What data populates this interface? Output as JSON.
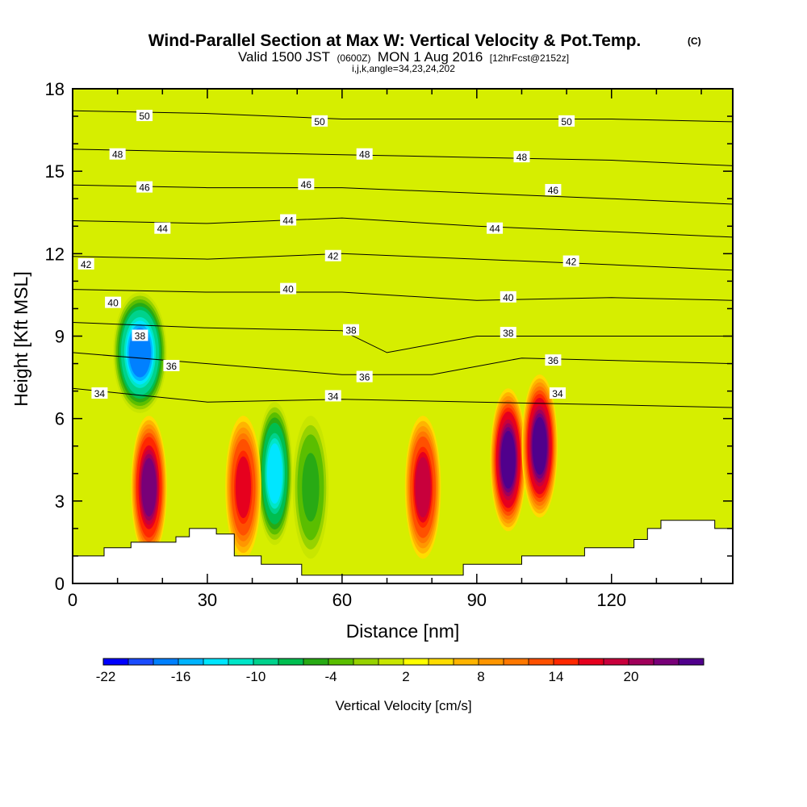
{
  "title": {
    "main": "Wind-Parallel Section at Max W: Vertical Velocity & Pot.Temp.",
    "copyright": "(C)",
    "valid_prefix": "Valid 1500 JST",
    "valid_z": "(0600Z)",
    "valid_date": "MON 1 Aug 2016",
    "valid_fcst": "[12hrFcst@2152z]",
    "indices": "i,j,k,angle=34,23,24,202"
  },
  "chart_data": {
    "type": "heatmap",
    "xlabel": "Distance [nm]",
    "ylabel": "Height [Kft MSL]",
    "xlim": [
      0,
      147
    ],
    "ylim": [
      0,
      18
    ],
    "x_ticks": [
      0,
      30,
      60,
      90,
      120
    ],
    "y_ticks": [
      0,
      3,
      6,
      9,
      12,
      15,
      18
    ],
    "colorbar": {
      "title": "Vertical Velocity [cm/s]",
      "tick_labels": [
        "-22",
        "-16",
        "-10",
        "-4",
        "2",
        "8",
        "14",
        "20"
      ],
      "colors": [
        "#0000ff",
        "#1a4cff",
        "#0080ff",
        "#00b4ff",
        "#00e6ff",
        "#00e6c8",
        "#00d28c",
        "#00be50",
        "#28aa14",
        "#5abe00",
        "#96d200",
        "#c8e600",
        "#ffff00",
        "#ffdc00",
        "#ffb400",
        "#ff9600",
        "#ff7800",
        "#ff5000",
        "#ff2800",
        "#e6001e",
        "#c8003c",
        "#a0005a",
        "#780078",
        "#50008c"
      ]
    },
    "w_centers": [
      {
        "x": 15,
        "y": 8.4,
        "w": -22
      },
      {
        "x": 45,
        "y": 4.0,
        "w": -18
      },
      {
        "x": 53,
        "y": 3.5,
        "w": -10
      },
      {
        "x": 17,
        "y": 3.5,
        "w": 22
      },
      {
        "x": 38,
        "y": 3.5,
        "w": 16
      },
      {
        "x": 78,
        "y": 3.5,
        "w": 18
      },
      {
        "x": 97,
        "y": 4.5,
        "w": 24
      },
      {
        "x": 104,
        "y": 5.0,
        "w": 24
      }
    ],
    "theta_contours": [
      {
        "label": "50",
        "points": [
          [
            0,
            17.2
          ],
          [
            30,
            17.1
          ],
          [
            60,
            16.9
          ],
          [
            90,
            16.9
          ],
          [
            120,
            16.9
          ],
          [
            147,
            16.8
          ]
        ],
        "labels_at": [
          [
            16,
            17.0
          ],
          [
            55,
            16.8
          ],
          [
            110,
            16.8
          ]
        ]
      },
      {
        "label": "48",
        "points": [
          [
            0,
            15.8
          ],
          [
            30,
            15.7
          ],
          [
            60,
            15.6
          ],
          [
            90,
            15.5
          ],
          [
            120,
            15.4
          ],
          [
            147,
            15.2
          ]
        ],
        "labels_at": [
          [
            10,
            15.6
          ],
          [
            65,
            15.6
          ],
          [
            100,
            15.5
          ]
        ]
      },
      {
        "label": "46",
        "points": [
          [
            0,
            14.5
          ],
          [
            30,
            14.4
          ],
          [
            60,
            14.4
          ],
          [
            90,
            14.2
          ],
          [
            120,
            14.0
          ],
          [
            147,
            13.8
          ]
        ],
        "labels_at": [
          [
            16,
            14.4
          ],
          [
            52,
            14.5
          ],
          [
            107,
            14.3
          ]
        ]
      },
      {
        "label": "44",
        "points": [
          [
            0,
            13.2
          ],
          [
            30,
            13.1
          ],
          [
            60,
            13.3
          ],
          [
            90,
            13.0
          ],
          [
            120,
            12.8
          ],
          [
            147,
            12.6
          ]
        ],
        "labels_at": [
          [
            20,
            12.9
          ],
          [
            48,
            13.2
          ],
          [
            94,
            12.9
          ]
        ]
      },
      {
        "label": "42",
        "points": [
          [
            0,
            11.9
          ],
          [
            30,
            11.8
          ],
          [
            60,
            12.0
          ],
          [
            90,
            11.8
          ],
          [
            120,
            11.6
          ],
          [
            147,
            11.4
          ]
        ],
        "labels_at": [
          [
            3,
            11.6
          ],
          [
            58,
            11.9
          ],
          [
            111,
            11.7
          ]
        ]
      },
      {
        "label": "40",
        "points": [
          [
            0,
            10.7
          ],
          [
            30,
            10.6
          ],
          [
            60,
            10.6
          ],
          [
            90,
            10.3
          ],
          [
            120,
            10.4
          ],
          [
            147,
            10.3
          ]
        ],
        "labels_at": [
          [
            9,
            10.2
          ],
          [
            48,
            10.7
          ],
          [
            97,
            10.4
          ]
        ]
      },
      {
        "label": "38",
        "points": [
          [
            0,
            9.5
          ],
          [
            30,
            9.3
          ],
          [
            60,
            9.2
          ],
          [
            70,
            8.4
          ],
          [
            90,
            9.0
          ],
          [
            120,
            9.0
          ],
          [
            147,
            9.0
          ]
        ],
        "labels_at": [
          [
            15,
            9.0
          ],
          [
            62,
            9.2
          ],
          [
            97,
            9.1
          ]
        ]
      },
      {
        "label": "36",
        "points": [
          [
            0,
            8.4
          ],
          [
            30,
            8.0
          ],
          [
            60,
            7.6
          ],
          [
            80,
            7.6
          ],
          [
            100,
            8.2
          ],
          [
            147,
            8.0
          ]
        ],
        "labels_at": [
          [
            22,
            7.9
          ],
          [
            65,
            7.5
          ],
          [
            107,
            8.1
          ]
        ]
      },
      {
        "label": "34",
        "points": [
          [
            0,
            7.1
          ],
          [
            30,
            6.6
          ],
          [
            60,
            6.7
          ],
          [
            90,
            6.6
          ],
          [
            120,
            6.5
          ],
          [
            147,
            6.4
          ]
        ],
        "labels_at": [
          [
            6,
            6.9
          ],
          [
            58,
            6.8
          ],
          [
            108,
            6.9
          ]
        ]
      }
    ],
    "terrain_profile": [
      [
        0,
        1.0
      ],
      [
        7,
        1.0
      ],
      [
        7,
        1.3
      ],
      [
        13,
        1.3
      ],
      [
        13,
        1.5
      ],
      [
        23,
        1.5
      ],
      [
        23,
        1.7
      ],
      [
        26,
        1.7
      ],
      [
        26,
        2.0
      ],
      [
        32,
        2.0
      ],
      [
        32,
        1.8
      ],
      [
        36,
        1.8
      ],
      [
        36,
        1.0
      ],
      [
        42,
        1.0
      ],
      [
        42,
        0.7
      ],
      [
        51,
        0.7
      ],
      [
        51,
        0.3
      ],
      [
        87,
        0.3
      ],
      [
        87,
        0.7
      ],
      [
        100,
        0.7
      ],
      [
        100,
        1.0
      ],
      [
        114,
        1.0
      ],
      [
        114,
        1.3
      ],
      [
        125,
        1.3
      ],
      [
        125,
        1.6
      ],
      [
        128,
        1.6
      ],
      [
        128,
        2.0
      ],
      [
        131,
        2.0
      ],
      [
        131,
        2.3
      ],
      [
        143,
        2.3
      ],
      [
        143,
        2.0
      ],
      [
        147,
        2.0
      ]
    ]
  }
}
